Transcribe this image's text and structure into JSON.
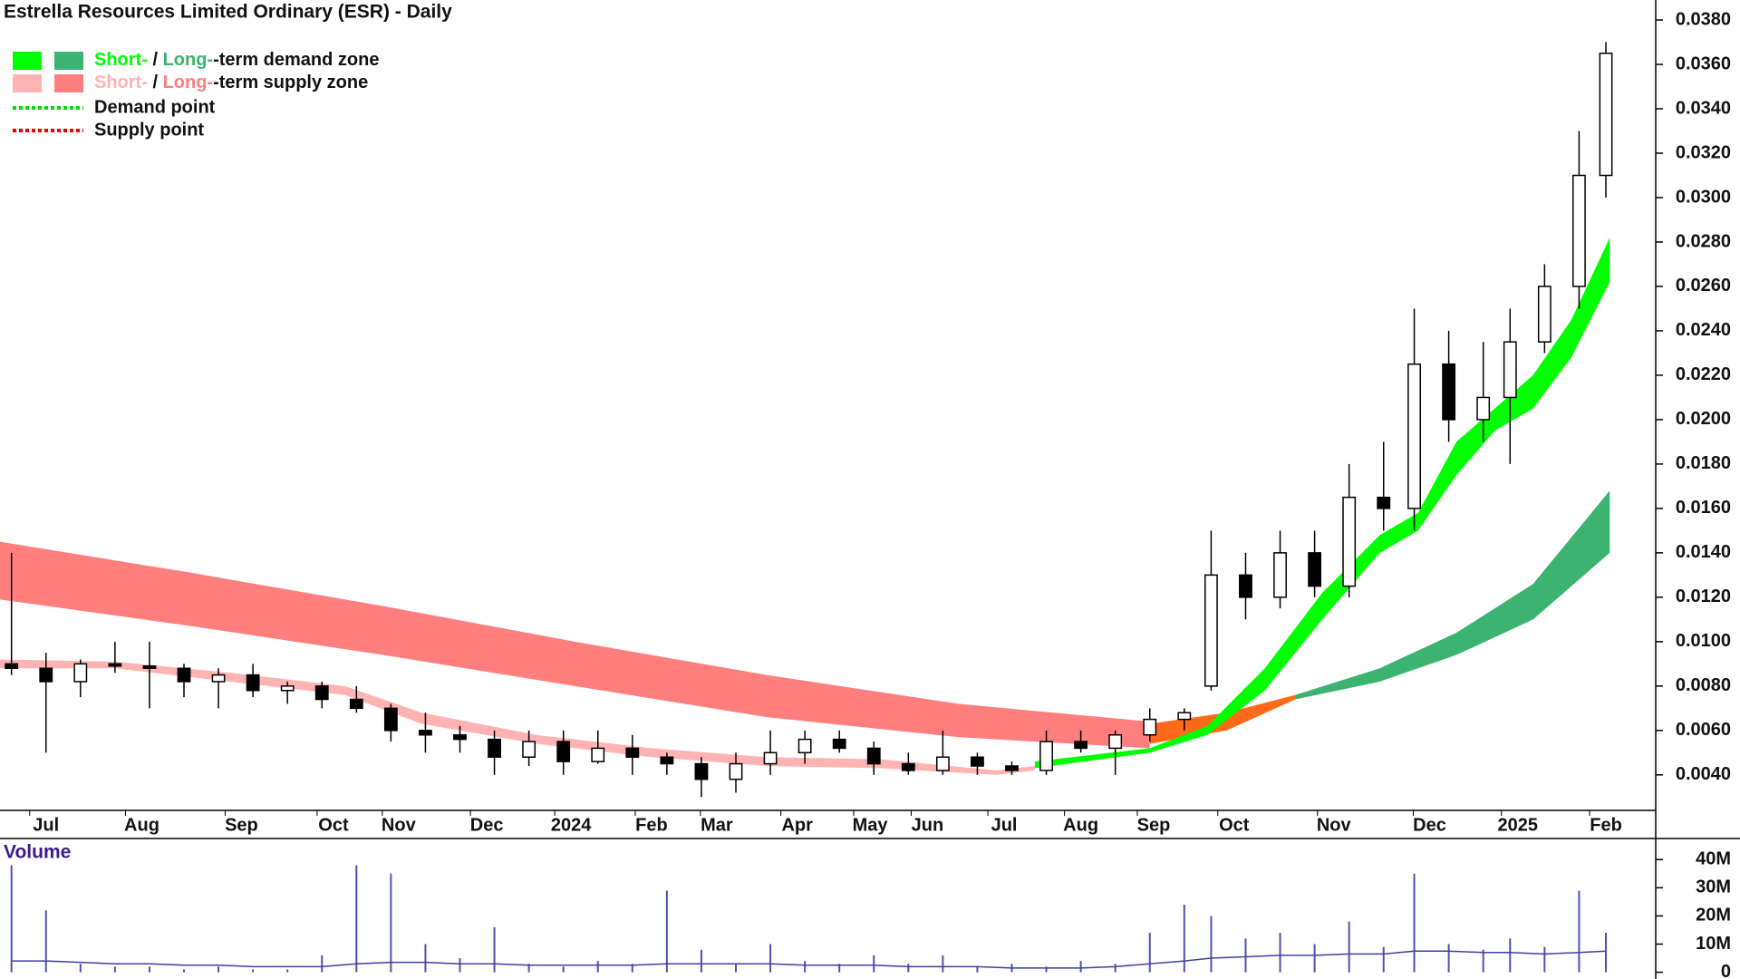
{
  "chart_data": [
    {
      "type": "candlestick",
      "title": "Estrella Resources Limited Ordinary (ESR) - Daily",
      "legend": {
        "zones": [
          {
            "colors": [
              "#00ff00",
              "#3cb371"
            ],
            "short": "Short-",
            "sep": " / ",
            "long": "Long-",
            "rest": "-term demand zone"
          },
          {
            "colors": [
              "#ffb3b3",
              "#ff7f7f"
            ],
            "short": "Short-",
            "sep": " / ",
            "long": "Long-",
            "rest": "-term supply zone"
          }
        ],
        "points": [
          {
            "color": "#00dd00",
            "label": "Demand point"
          },
          {
            "color": "#ee0000",
            "label": "Supply point"
          }
        ]
      },
      "xlim": [
        0,
        432
      ],
      "xticks": [
        {
          "value": 12,
          "label": "Jul"
        },
        {
          "value": 37,
          "label": "Aug"
        },
        {
          "value": 63,
          "label": "Sep"
        },
        {
          "value": 87,
          "label": "Oct"
        },
        {
          "value": 104,
          "label": "Nov"
        },
        {
          "value": 127,
          "label": "Dec"
        },
        {
          "value": 149,
          "label": "2024"
        },
        {
          "value": 170,
          "label": "Feb"
        },
        {
          "value": 187,
          "label": "Mar"
        },
        {
          "value": 208,
          "label": "Apr"
        },
        {
          "value": 227,
          "label": "May"
        },
        {
          "value": 242,
          "label": "Jun"
        },
        {
          "value": 262,
          "label": "Jul"
        },
        {
          "value": 282,
          "label": "Aug"
        },
        {
          "value": 301,
          "label": "Sep"
        },
        {
          "value": 322,
          "label": "Oct"
        },
        {
          "value": 348,
          "label": "Nov"
        },
        {
          "value": 373,
          "label": "Dec"
        },
        {
          "value": 396,
          "label": "2025"
        },
        {
          "value": 419,
          "label": "Feb"
        }
      ],
      "ylim": [
        0.0024,
        0.0389
      ],
      "yticks": [
        {
          "value": 0.004,
          "label": "0.0040"
        },
        {
          "value": 0.006,
          "label": "0.0060"
        },
        {
          "value": 0.008,
          "label": "0.0080"
        },
        {
          "value": 0.01,
          "label": "0.0100"
        },
        {
          "value": 0.012,
          "label": "0.0120"
        },
        {
          "value": 0.014,
          "label": "0.0140"
        },
        {
          "value": 0.016,
          "label": "0.0160"
        },
        {
          "value": 0.018,
          "label": "0.0180"
        },
        {
          "value": 0.02,
          "label": "0.0200"
        },
        {
          "value": 0.022,
          "label": "0.0220"
        },
        {
          "value": 0.024,
          "label": "0.0240"
        },
        {
          "value": 0.026,
          "label": "0.0260"
        },
        {
          "value": 0.028,
          "label": "0.0280"
        },
        {
          "value": 0.03,
          "label": "0.0300"
        },
        {
          "value": 0.032,
          "label": "0.0320"
        },
        {
          "value": 0.034,
          "label": "0.0340"
        },
        {
          "value": 0.036,
          "label": "0.0360"
        },
        {
          "value": 0.038,
          "label": "0.0380"
        }
      ],
      "bands": [
        {
          "color": "#ff7f7f",
          "x": [
            0,
            50,
            100,
            150,
            200,
            250,
            300
          ],
          "upper": [
            0.0145,
            0.0131,
            0.0116,
            0.01,
            0.0085,
            0.0072,
            0.0064
          ],
          "lower": [
            0.0119,
            0.0107,
            0.0094,
            0.008,
            0.0066,
            0.0057,
            0.0052
          ]
        },
        {
          "color": "#ff6a1a",
          "x": [
            300,
            320,
            338
          ],
          "upper": [
            0.0063,
            0.0068,
            0.0076
          ],
          "lower": [
            0.0054,
            0.006,
            0.0074
          ]
        },
        {
          "color": "#3cb371",
          "x": [
            338,
            360,
            380,
            400,
            420
          ],
          "upper": [
            0.0076,
            0.0088,
            0.0104,
            0.0126,
            0.0168
          ],
          "lower": [
            0.0074,
            0.0082,
            0.0094,
            0.011,
            0.014
          ]
        },
        {
          "color": "#ffb3b3",
          "x": [
            0,
            30,
            60,
            90,
            110,
            140,
            170,
            200,
            230,
            260,
            270
          ],
          "upper": [
            0.0092,
            0.0091,
            0.0086,
            0.008,
            0.0068,
            0.0058,
            0.0052,
            0.0048,
            0.0047,
            0.0042,
            0.0044
          ],
          "lower": [
            0.0088,
            0.0088,
            0.0082,
            0.0076,
            0.0063,
            0.0054,
            0.0048,
            0.0044,
            0.0043,
            0.004,
            0.0042
          ]
        },
        {
          "color": "#00ff00",
          "x": [
            270,
            300,
            315,
            330,
            345,
            360,
            370,
            380,
            390,
            400,
            410,
            420
          ],
          "upper": [
            0.0046,
            0.0052,
            0.0062,
            0.0088,
            0.0122,
            0.0148,
            0.0158,
            0.019,
            0.0205,
            0.022,
            0.0245,
            0.0282
          ],
          "lower": [
            0.0043,
            0.005,
            0.0058,
            0.0078,
            0.011,
            0.014,
            0.015,
            0.0175,
            0.0195,
            0.0205,
            0.0228,
            0.0262
          ]
        }
      ],
      "x": [
        3,
        12,
        21,
        30,
        39,
        48,
        57,
        66,
        75,
        84,
        93,
        102,
        111,
        120,
        129,
        138,
        147,
        156,
        165,
        174,
        183,
        192,
        201,
        210,
        219,
        228,
        237,
        246,
        255,
        264,
        273,
        282,
        291,
        300,
        309,
        316,
        325,
        334,
        343,
        352,
        361,
        369,
        378,
        387,
        394,
        403,
        412,
        419
      ],
      "open": [
        0.009,
        0.0088,
        0.0082,
        0.009,
        0.0089,
        0.0088,
        0.0082,
        0.0085,
        0.0078,
        0.008,
        0.0074,
        0.007,
        0.006,
        0.0058,
        0.0056,
        0.0048,
        0.0055,
        0.0046,
        0.0052,
        0.0048,
        0.0045,
        0.0038,
        0.0045,
        0.005,
        0.0056,
        0.0052,
        0.0045,
        0.0042,
        0.0048,
        0.0044,
        0.0042,
        0.0055,
        0.0052,
        0.0058,
        0.0065,
        0.008,
        0.013,
        0.012,
        0.014,
        0.0125,
        0.0165,
        0.016,
        0.0225,
        0.02,
        0.021,
        0.0235,
        0.026,
        0.031
      ],
      "high": [
        0.014,
        0.0095,
        0.0092,
        0.01,
        0.01,
        0.009,
        0.0088,
        0.009,
        0.0082,
        0.0082,
        0.008,
        0.0072,
        0.0068,
        0.0062,
        0.006,
        0.006,
        0.006,
        0.006,
        0.0058,
        0.005,
        0.0048,
        0.005,
        0.006,
        0.006,
        0.006,
        0.0055,
        0.005,
        0.006,
        0.005,
        0.0046,
        0.006,
        0.006,
        0.006,
        0.007,
        0.007,
        0.015,
        0.014,
        0.015,
        0.015,
        0.018,
        0.019,
        0.025,
        0.024,
        0.0235,
        0.025,
        0.027,
        0.033,
        0.037
      ],
      "low": [
        0.0085,
        0.005,
        0.0075,
        0.0086,
        0.007,
        0.0075,
        0.007,
        0.0075,
        0.0072,
        0.007,
        0.0068,
        0.0055,
        0.005,
        0.005,
        0.004,
        0.0044,
        0.004,
        0.0045,
        0.004,
        0.004,
        0.003,
        0.0032,
        0.004,
        0.0045,
        0.005,
        0.004,
        0.004,
        0.004,
        0.004,
        0.004,
        0.004,
        0.005,
        0.004,
        0.0055,
        0.006,
        0.0078,
        0.011,
        0.0115,
        0.012,
        0.012,
        0.015,
        0.015,
        0.019,
        0.019,
        0.018,
        0.023,
        0.025,
        0.03
      ],
      "close": [
        0.0088,
        0.0082,
        0.009,
        0.0089,
        0.0088,
        0.0082,
        0.0085,
        0.0078,
        0.008,
        0.0074,
        0.007,
        0.006,
        0.0058,
        0.0056,
        0.0048,
        0.0055,
        0.0046,
        0.0052,
        0.0048,
        0.0045,
        0.0038,
        0.0045,
        0.005,
        0.0056,
        0.0052,
        0.0045,
        0.0042,
        0.0048,
        0.0044,
        0.0042,
        0.0055,
        0.0052,
        0.0058,
        0.0065,
        0.0068,
        0.013,
        0.012,
        0.014,
        0.0125,
        0.0165,
        0.016,
        0.0225,
        0.02,
        0.021,
        0.0235,
        0.026,
        0.031,
        0.0365
      ]
    },
    {
      "type": "volume",
      "title": "Volume",
      "color": "#5050b0",
      "average_color": "#4040a0",
      "xlim": [
        0,
        432
      ],
      "ylim": [
        -2.4,
        47.5
      ],
      "yticks": [
        0,
        {
          "value": 10,
          "label": "10M"
        },
        {
          "value": 20,
          "label": "20M"
        },
        {
          "value": 30,
          "label": "30M"
        },
        {
          "value": 40,
          "label": "40M"
        }
      ],
      "x": [
        3,
        12,
        21,
        30,
        39,
        48,
        57,
        66,
        75,
        84,
        93,
        102,
        111,
        120,
        129,
        138,
        147,
        156,
        165,
        174,
        183,
        192,
        201,
        210,
        219,
        228,
        237,
        246,
        255,
        264,
        273,
        282,
        291,
        300,
        309,
        316,
        325,
        334,
        343,
        352,
        361,
        369,
        378,
        387,
        394,
        403,
        412,
        419
      ],
      "values": [
        38,
        22,
        3,
        2,
        2,
        1,
        2,
        1,
        1,
        6,
        38,
        35,
        10,
        5,
        16,
        3,
        2,
        4,
        3,
        29,
        8,
        3,
        10,
        4,
        3,
        6,
        3,
        6,
        2,
        3,
        2,
        4,
        3,
        14,
        24,
        20,
        12,
        14,
        10,
        18,
        9,
        35,
        10,
        8,
        12,
        9,
        29,
        14
      ],
      "average": [
        4,
        4,
        3.5,
        3,
        3,
        2.5,
        2.5,
        2,
        2,
        2,
        3,
        3.5,
        3.5,
        3,
        3,
        2.5,
        2.5,
        2.5,
        2.5,
        3,
        3,
        3,
        3,
        2.5,
        2.5,
        2.5,
        2,
        2,
        2,
        1.5,
        1.5,
        1.5,
        2,
        3,
        4,
        5,
        5.5,
        6,
        6,
        6.5,
        6.5,
        7.5,
        7.5,
        7,
        7,
        6.5,
        7,
        7.5
      ]
    }
  ]
}
